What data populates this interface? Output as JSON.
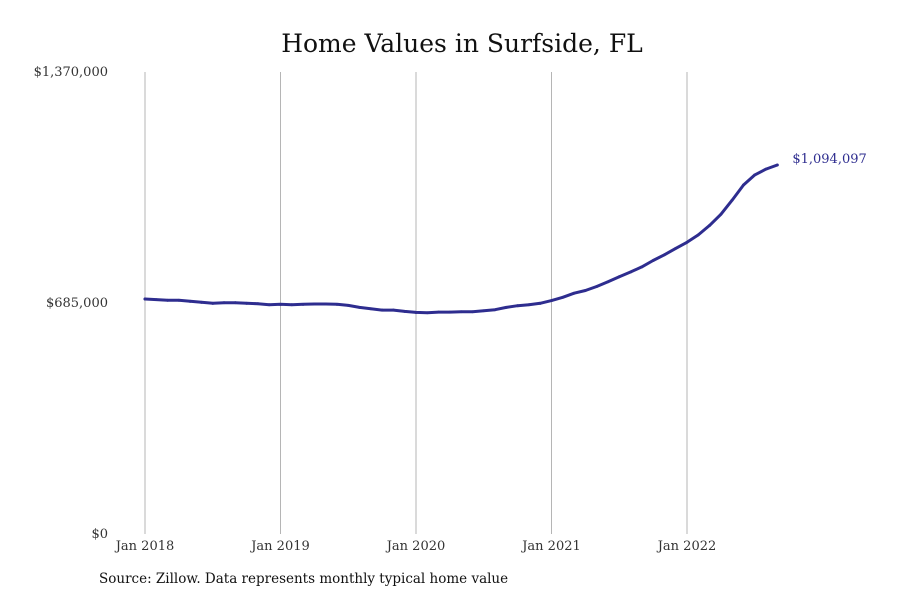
{
  "chart_data": {
    "type": "line",
    "title": "Home Values in Surfside, FL",
    "xlabel": "",
    "ylabel": "",
    "ylim": [
      0,
      1370000
    ],
    "y_ticks": [
      {
        "value": 0,
        "label": "$0"
      },
      {
        "value": 685000,
        "label": "$685,000"
      },
      {
        "value": 1370000,
        "label": "$1,370,000"
      }
    ],
    "x_ticks": [
      {
        "month_index": 0,
        "label": "Jan 2018"
      },
      {
        "month_index": 12,
        "label": "Jan 2019"
      },
      {
        "month_index": 24,
        "label": "Jan 2020"
      },
      {
        "month_index": 36,
        "label": "Jan 2021"
      },
      {
        "month_index": 48,
        "label": "Jan 2022"
      }
    ],
    "grid": "vertical",
    "series": [
      {
        "name": "Typical home value",
        "color": "#2e2d8f",
        "start": "Jan 2018",
        "frequency": "monthly",
        "values": [
          697000,
          695000,
          693000,
          693000,
          690000,
          687000,
          684000,
          686000,
          686000,
          684000,
          683000,
          680000,
          681000,
          680000,
          681000,
          682000,
          682000,
          681000,
          678000,
          672000,
          668000,
          664000,
          664000,
          660000,
          657000,
          656000,
          658000,
          658000,
          659000,
          659000,
          662000,
          665000,
          672000,
          677000,
          680000,
          684000,
          692000,
          702000,
          714000,
          722000,
          734000,
          748000,
          763000,
          777000,
          792000,
          811000,
          828000,
          847000,
          865000,
          887000,
          915000,
          948000,
          990000,
          1035000,
          1065000,
          1082000,
          1094097
        ]
      }
    ],
    "end_label": "$1,094,097"
  },
  "source_note": "Source: Zillow. Data represents monthly typical home value"
}
